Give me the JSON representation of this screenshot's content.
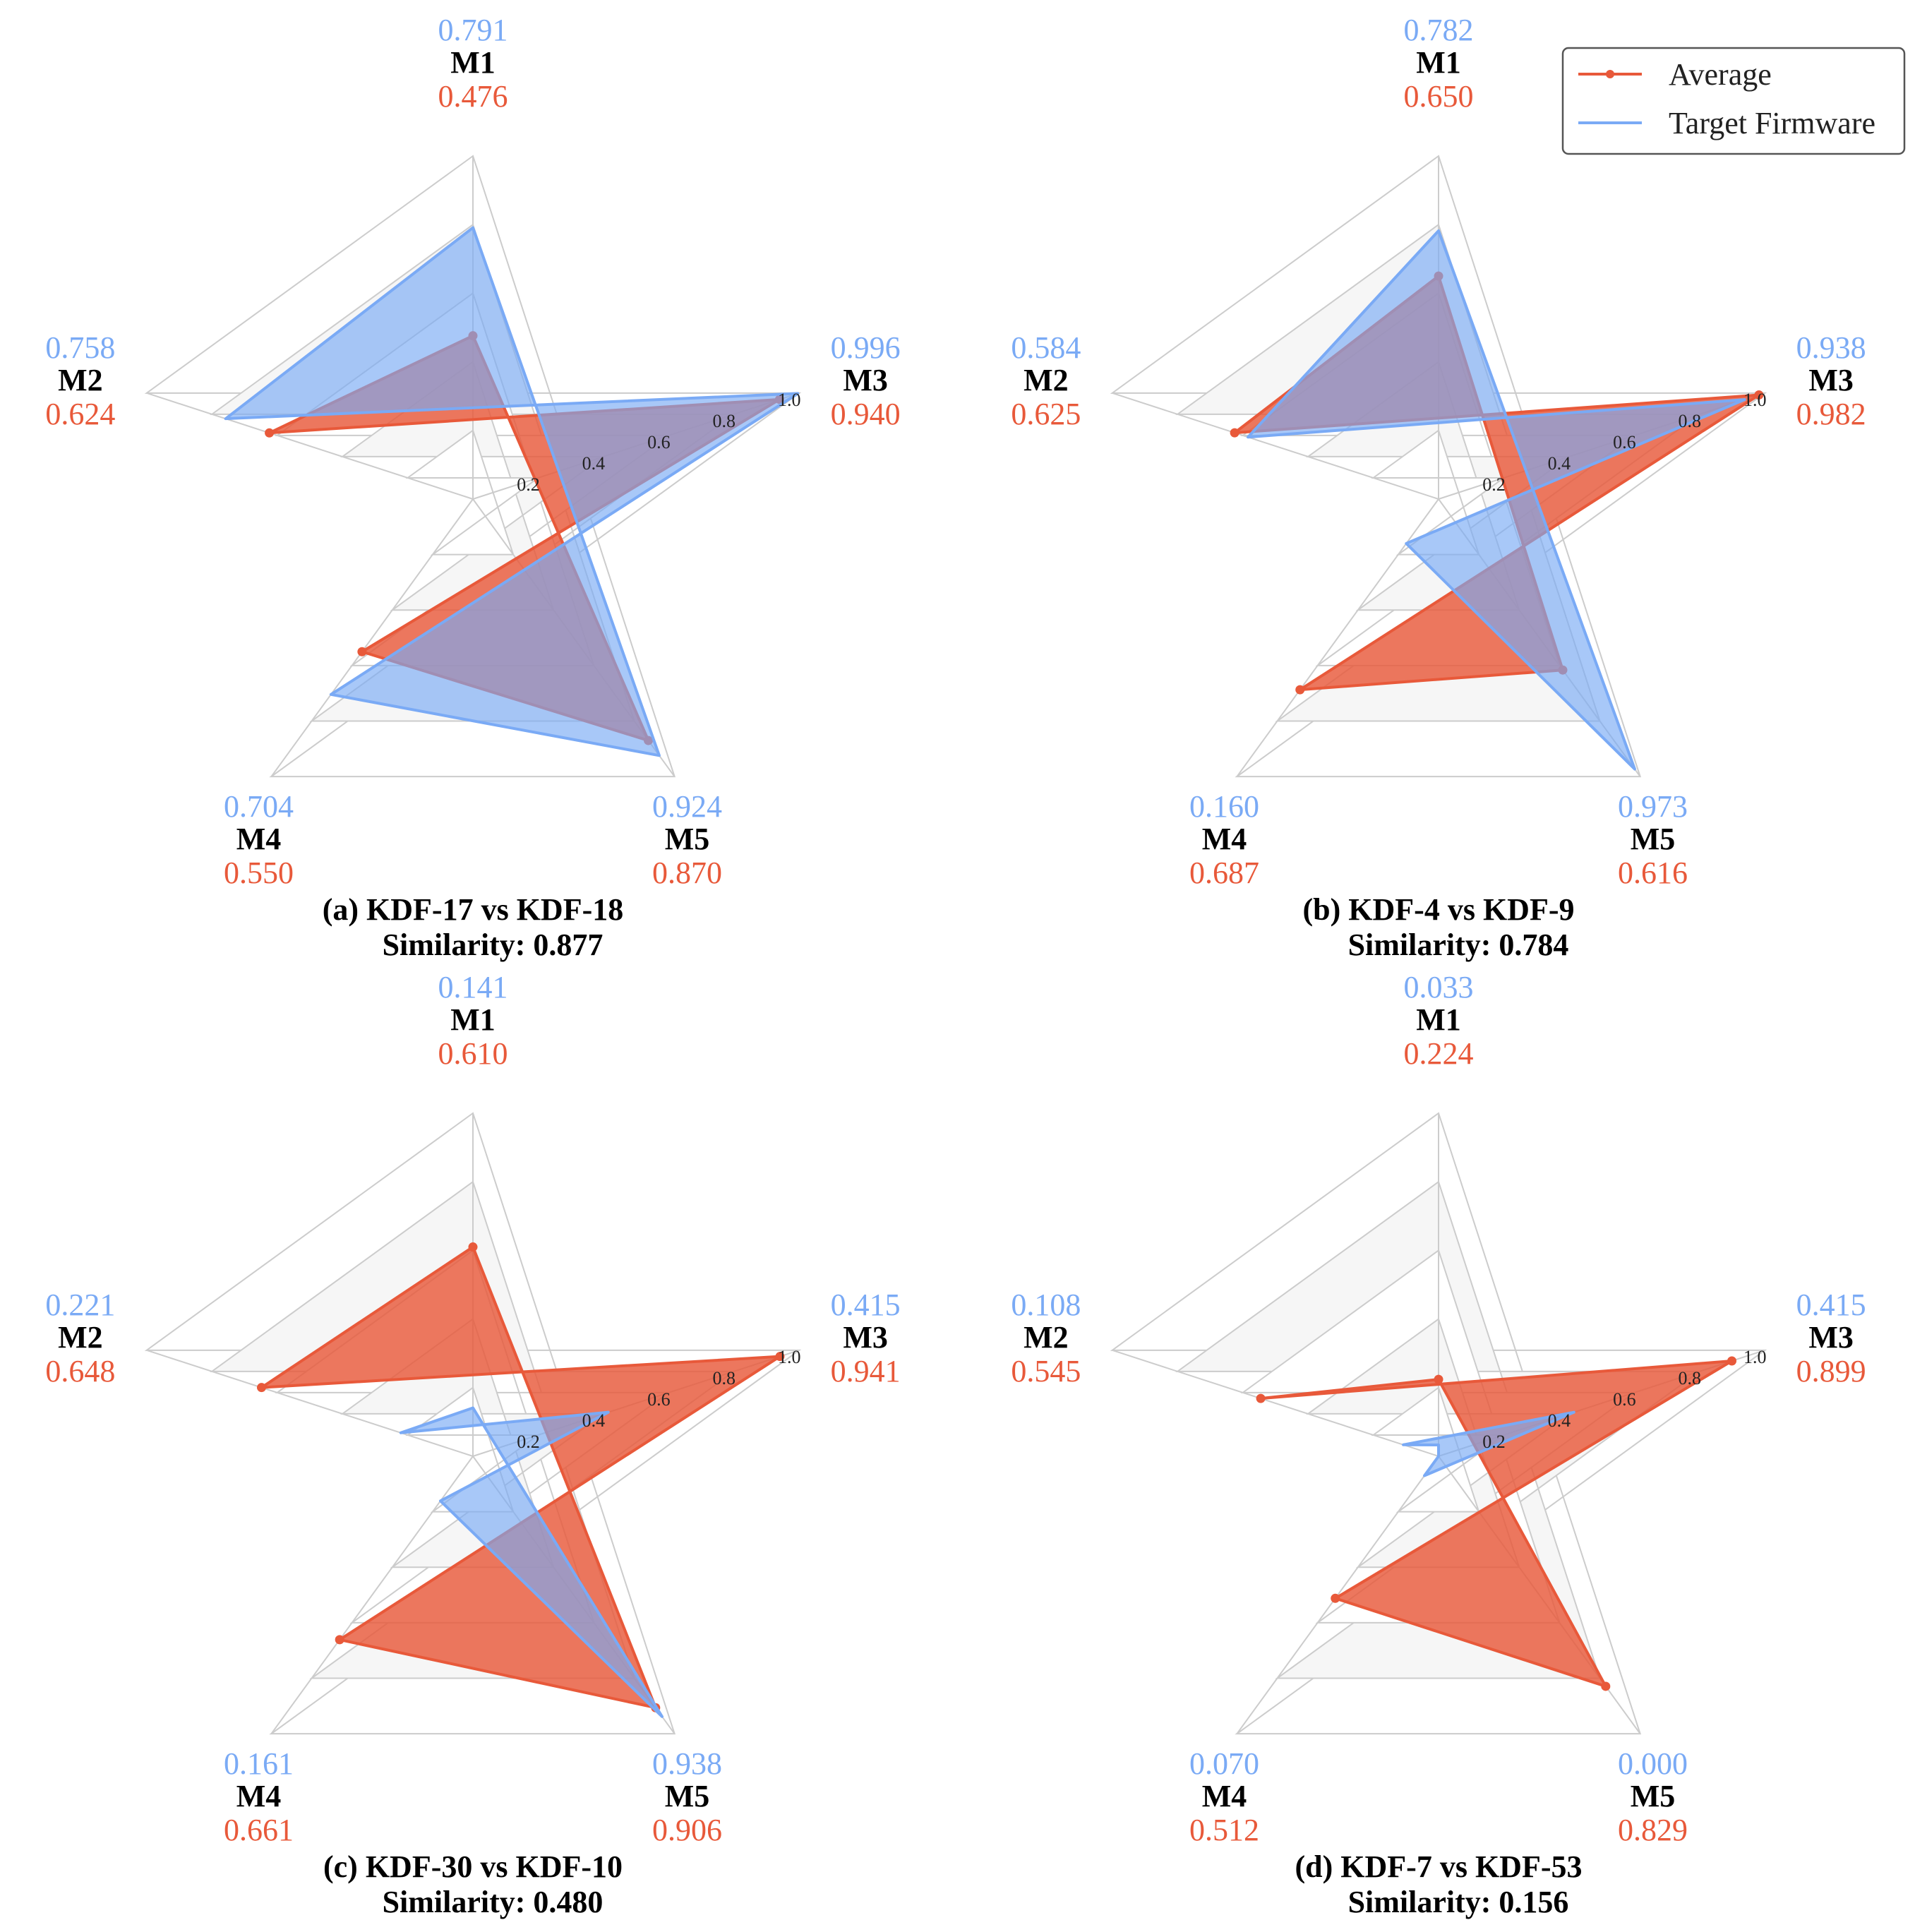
{
  "colors": {
    "average": "#E8593A",
    "target": "#7AAAF5",
    "grid": "#CCCCCC",
    "ring_fill": "#F6F6F6"
  },
  "legend": {
    "average_label": "Average",
    "target_label": "Target Firmware"
  },
  "chart_data": [
    {
      "type": "radar",
      "axes": [
        "M1",
        "M2",
        "M3",
        "M4",
        "M5"
      ],
      "rlim": [
        0,
        1.0
      ],
      "ticks": [
        "0.2",
        "0.4",
        "0.6",
        "0.8",
        "1.0"
      ],
      "series": [
        {
          "name": "Average",
          "values": [
            0.476,
            0.624,
            0.94,
            0.55,
            0.87
          ],
          "labels": [
            "0.476",
            "0.624",
            "0.940",
            "0.550",
            "0.870"
          ]
        },
        {
          "name": "Target Firmware",
          "values": [
            0.791,
            0.758,
            0.996,
            0.704,
            0.924
          ],
          "labels": [
            "0.791",
            "0.758",
            "0.996",
            "0.704",
            "0.924"
          ]
        }
      ],
      "caption": "(a) KDF-17 vs KDF-18",
      "similarity": "Similarity: 0.877"
    },
    {
      "type": "radar",
      "axes": [
        "M1",
        "M2",
        "M3",
        "M4",
        "M5"
      ],
      "rlim": [
        0,
        1.0
      ],
      "ticks": [
        "0.2",
        "0.4",
        "0.6",
        "0.8",
        "1.0"
      ],
      "series": [
        {
          "name": "Average",
          "values": [
            0.65,
            0.625,
            0.982,
            0.687,
            0.616
          ],
          "labels": [
            "0.650",
            "0.625",
            "0.982",
            "0.687",
            "0.616"
          ]
        },
        {
          "name": "Target Firmware",
          "values": [
            0.782,
            0.584,
            0.938,
            0.16,
            0.973
          ],
          "labels": [
            "0.782",
            "0.584",
            "0.938",
            "0.160",
            "0.973"
          ]
        }
      ],
      "caption": "(b) KDF-4 vs KDF-9",
      "similarity": "Similarity: 0.784"
    },
    {
      "type": "radar",
      "axes": [
        "M1",
        "M2",
        "M3",
        "M4",
        "M5"
      ],
      "rlim": [
        0,
        1.0
      ],
      "ticks": [
        "0.2",
        "0.4",
        "0.6",
        "0.8",
        "1.0"
      ],
      "series": [
        {
          "name": "Average",
          "values": [
            0.61,
            0.648,
            0.941,
            0.661,
            0.906
          ],
          "labels": [
            "0.610",
            "0.648",
            "0.941",
            "0.661",
            "0.906"
          ]
        },
        {
          "name": "Target Firmware",
          "values": [
            0.141,
            0.221,
            0.415,
            0.161,
            0.938
          ],
          "labels": [
            "0.141",
            "0.221",
            "0.415",
            "0.161",
            "0.938"
          ]
        }
      ],
      "caption": "(c) KDF-30 vs KDF-10",
      "similarity": "Similarity: 0.480"
    },
    {
      "type": "radar",
      "axes": [
        "M1",
        "M2",
        "M3",
        "M4",
        "M5"
      ],
      "rlim": [
        0,
        1.0
      ],
      "ticks": [
        "0.2",
        "0.4",
        "0.6",
        "0.8",
        "1.0"
      ],
      "series": [
        {
          "name": "Average",
          "values": [
            0.224,
            0.545,
            0.899,
            0.512,
            0.829
          ],
          "labels": [
            "0.224",
            "0.545",
            "0.899",
            "0.512",
            "0.829"
          ]
        },
        {
          "name": "Target Firmware",
          "values": [
            0.033,
            0.108,
            0.415,
            0.07,
            0.0
          ],
          "labels": [
            "0.033",
            "0.108",
            "0.415",
            "0.070",
            "0.000"
          ]
        }
      ],
      "caption": "(d) KDF-7 vs KDF-53",
      "similarity": "Similarity: 0.156"
    }
  ]
}
